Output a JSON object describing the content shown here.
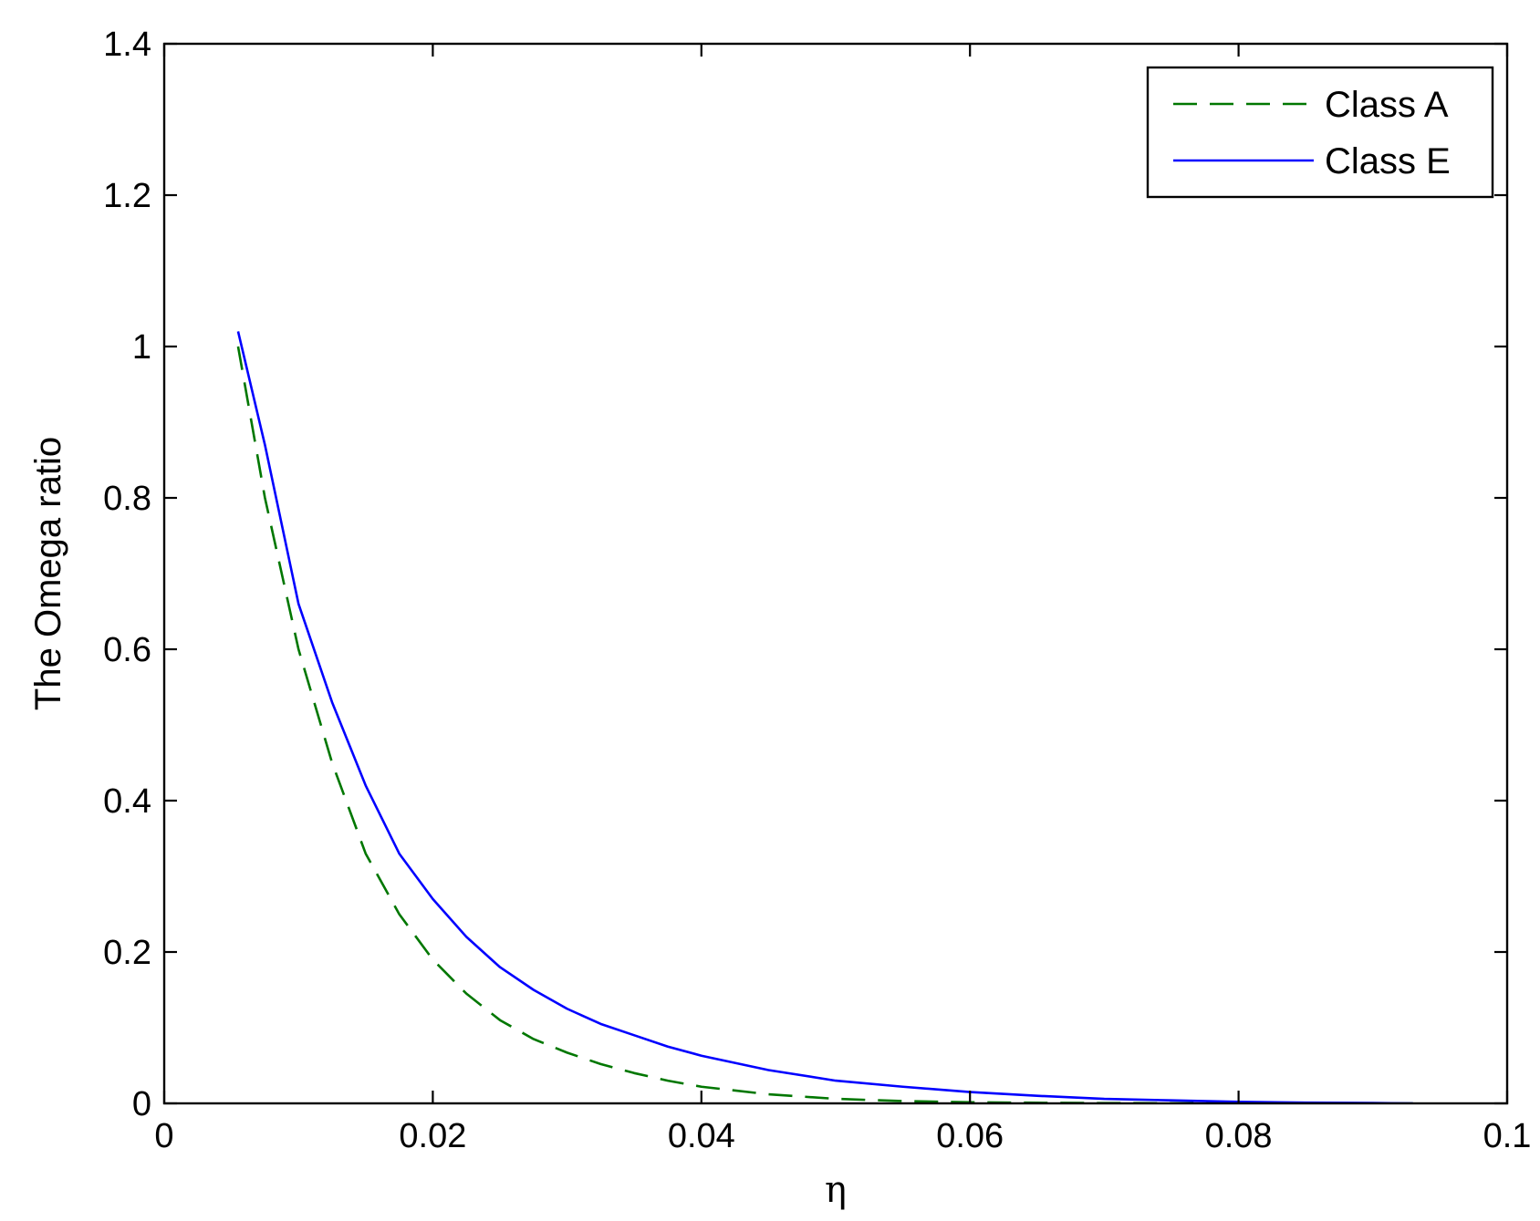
{
  "chart_data": {
    "type": "line",
    "title": "",
    "xlabel": "η",
    "ylabel": "The Omega ratio",
    "xlim": [
      0,
      0.1
    ],
    "ylim": [
      0,
      1.4
    ],
    "xticks": [
      0,
      0.02,
      0.04,
      0.06,
      0.08,
      0.1
    ],
    "xtick_labels": [
      "0",
      "0.02",
      "0.04",
      "0.06",
      "0.08",
      "0.1"
    ],
    "yticks": [
      0,
      0.2,
      0.4,
      0.6,
      0.8,
      1,
      1.2,
      1.4
    ],
    "ytick_labels": [
      "0",
      "0.2",
      "0.4",
      "0.6",
      "0.8",
      "1",
      "1.2",
      "1.4"
    ],
    "grid": false,
    "legend_position": "top-right",
    "series": [
      {
        "name": "Class A",
        "color": "#007700",
        "style": "dashed",
        "x": [
          0.0055,
          0.0075,
          0.01,
          0.0125,
          0.015,
          0.0175,
          0.02,
          0.0225,
          0.025,
          0.0275,
          0.03,
          0.0325,
          0.035,
          0.0375,
          0.04,
          0.045,
          0.05,
          0.055,
          0.06,
          0.065,
          0.07,
          0.08,
          0.09,
          0.093
        ],
        "y": [
          1.0,
          0.8,
          0.6,
          0.45,
          0.33,
          0.25,
          0.19,
          0.145,
          0.11,
          0.085,
          0.067,
          0.052,
          0.04,
          0.03,
          0.022,
          0.012,
          0.006,
          0.003,
          0.0015,
          0.0008,
          0.0004,
          0.0001,
          0.0,
          0.0
        ]
      },
      {
        "name": "Class E",
        "color": "#0000ff",
        "style": "solid",
        "x": [
          0.0055,
          0.0075,
          0.01,
          0.0125,
          0.015,
          0.0175,
          0.02,
          0.0225,
          0.025,
          0.0275,
          0.03,
          0.0325,
          0.035,
          0.0375,
          0.04,
          0.045,
          0.05,
          0.055,
          0.06,
          0.065,
          0.07,
          0.075,
          0.08,
          0.085,
          0.09,
          0.093
        ],
        "y": [
          1.02,
          0.87,
          0.66,
          0.53,
          0.42,
          0.33,
          0.27,
          0.22,
          0.18,
          0.15,
          0.125,
          0.105,
          0.09,
          0.075,
          0.063,
          0.044,
          0.03,
          0.022,
          0.015,
          0.01,
          0.006,
          0.004,
          0.002,
          0.001,
          0.0005,
          0.0
        ]
      }
    ]
  }
}
